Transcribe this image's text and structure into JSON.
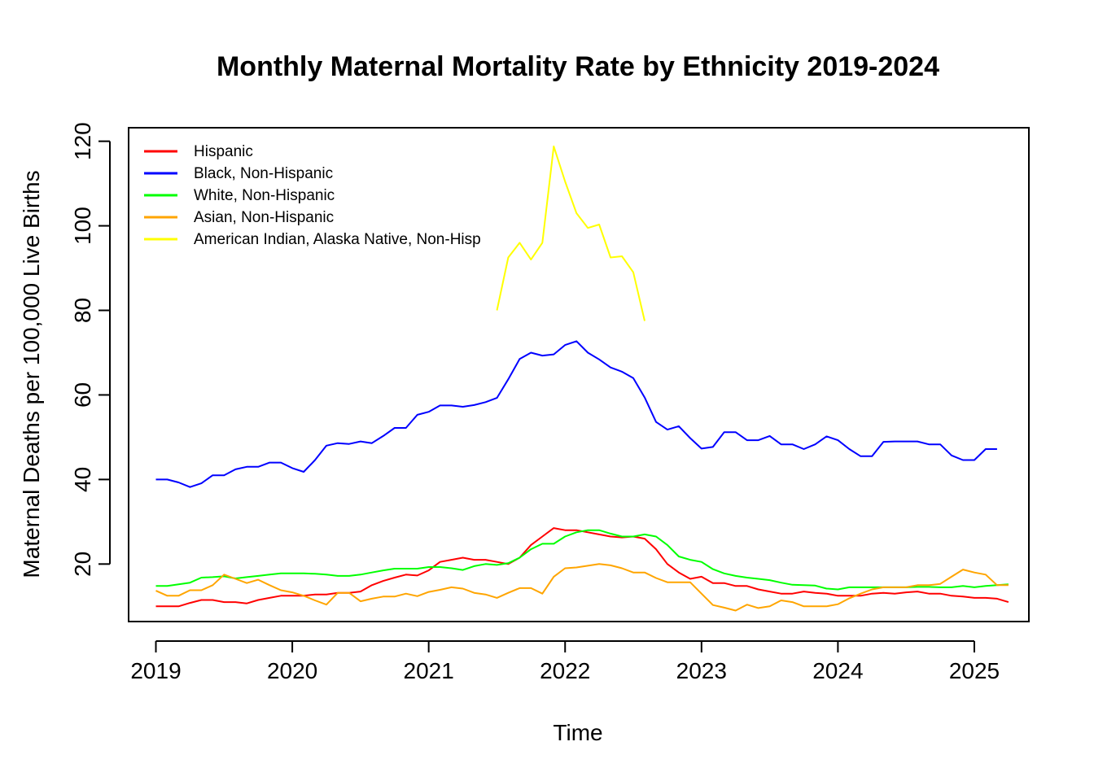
{
  "chart_data": {
    "type": "line",
    "title": "Monthly Maternal Mortality Rate by Ethnicity 2019-2024",
    "xlabel": "Time",
    "ylabel": "Maternal Deaths per 100,000 Live Births",
    "xlim": [
      2018.8,
      2025.4
    ],
    "ylim": [
      6.4,
      123.2
    ],
    "x_ticks": [
      2019,
      2020,
      2021,
      2022,
      2023,
      2024,
      2025
    ],
    "y_ticks": [
      20,
      40,
      60,
      80,
      100,
      120
    ],
    "grid": false,
    "legend_position": "top-left",
    "series": [
      {
        "name": "Hispanic",
        "color": "#ff0000",
        "start": 2019.0,
        "step": 0.0833333,
        "values": [
          10.0,
          10.0,
          10.0,
          10.8,
          11.5,
          11.5,
          11.0,
          11.0,
          10.7,
          11.5,
          12.0,
          12.5,
          12.5,
          12.5,
          12.8,
          12.8,
          13.2,
          13.2,
          13.5,
          15.0,
          16.0,
          16.8,
          17.5,
          17.3,
          18.5,
          20.5,
          21.0,
          21.5,
          21.0,
          21.0,
          20.5,
          20.0,
          21.5,
          24.5,
          26.5,
          28.5,
          28.0,
          28.0,
          27.5,
          27.0,
          26.5,
          26.3,
          26.5,
          26.0,
          23.5,
          20.0,
          18.0,
          16.5,
          17.0,
          15.5,
          15.5,
          14.8,
          14.8,
          14.0,
          13.5,
          13.0,
          13.0,
          13.5,
          13.2,
          13.0,
          12.5,
          12.5,
          12.5,
          13.0,
          13.2,
          13.0,
          13.3,
          13.5,
          13.0,
          13.0,
          12.5,
          12.3,
          12.0,
          12.0,
          11.8,
          11.0
        ]
      },
      {
        "name": "Black, Non-Hispanic",
        "color": "#0000ff",
        "start": 2019.0,
        "step": 0.0833333,
        "values": [
          40.0,
          40.0,
          39.3,
          38.2,
          39.1,
          41.0,
          41.0,
          42.4,
          43.0,
          43.0,
          44.0,
          44.0,
          42.7,
          41.8,
          44.6,
          48.0,
          48.6,
          48.4,
          49.0,
          48.6,
          50.3,
          52.2,
          52.2,
          55.3,
          56.0,
          57.5,
          57.5,
          57.2,
          57.6,
          58.3,
          59.3,
          63.7,
          68.5,
          70.0,
          69.3,
          69.6,
          71.8,
          72.7,
          70.0,
          68.4,
          66.5,
          65.5,
          64.0,
          59.4,
          53.6,
          51.8,
          52.6,
          49.8,
          47.3,
          47.7,
          51.2,
          51.2,
          49.3,
          49.3,
          50.3,
          48.3,
          48.3,
          47.2,
          48.3,
          50.2,
          49.3,
          47.2,
          45.5,
          45.5,
          48.9,
          49.0,
          49.0,
          49.0,
          48.3,
          48.3,
          45.7,
          44.6,
          44.6,
          47.2,
          47.2
        ]
      },
      {
        "name": "White, Non-Hispanic",
        "color": "#00ff00",
        "start": 2019.0,
        "step": 0.0833333,
        "values": [
          14.8,
          14.8,
          15.2,
          15.6,
          16.8,
          16.9,
          17.1,
          16.6,
          16.9,
          17.2,
          17.5,
          17.8,
          17.8,
          17.8,
          17.7,
          17.5,
          17.2,
          17.2,
          17.5,
          18.0,
          18.5,
          18.9,
          18.9,
          18.9,
          19.3,
          19.3,
          19.0,
          18.6,
          19.5,
          20.0,
          19.8,
          20.2,
          21.5,
          23.5,
          24.8,
          24.8,
          26.5,
          27.5,
          28.0,
          28.0,
          27.2,
          26.5,
          26.5,
          27.0,
          26.5,
          24.5,
          21.8,
          21.0,
          20.5,
          18.8,
          17.8,
          17.2,
          16.8,
          16.5,
          16.2,
          15.6,
          15.1,
          15.0,
          14.9,
          14.2,
          14.0,
          14.5,
          14.5,
          14.5,
          14.5,
          14.5,
          14.5,
          14.6,
          14.6,
          14.5,
          14.5,
          14.8,
          14.5,
          14.8,
          15.0,
          15.2
        ]
      },
      {
        "name": "Asian, Non-Hispanic",
        "color": "#ffa500",
        "start": 2019.0,
        "step": 0.0833333,
        "values": [
          13.7,
          12.5,
          12.5,
          13.8,
          13.8,
          15.0,
          17.5,
          16.5,
          15.5,
          16.3,
          15.0,
          13.8,
          13.3,
          12.5,
          11.4,
          10.4,
          13.2,
          13.2,
          11.2,
          11.8,
          12.3,
          12.3,
          13.0,
          12.4,
          13.4,
          13.9,
          14.5,
          14.2,
          13.2,
          12.8,
          12.0,
          13.2,
          14.3,
          14.3,
          13.0,
          17.0,
          19.0,
          19.2,
          19.6,
          20.0,
          19.7,
          19.0,
          18.0,
          18.0,
          16.7,
          15.7,
          15.7,
          15.7,
          13.0,
          10.3,
          9.7,
          9.0,
          10.4,
          9.6,
          10.0,
          11.4,
          11.0,
          10.0,
          10.0,
          10.0,
          10.5,
          11.9,
          13.0,
          14.0,
          14.5,
          14.5,
          14.5,
          15.0,
          15.0,
          15.3,
          17.0,
          18.7,
          18.0,
          17.5,
          15.0,
          15.0
        ]
      },
      {
        "name": "American Indian, Alaska Native, Non-Hisp",
        "color": "#ffff00",
        "start": 2021.5,
        "step": 0.0833333,
        "values": [
          80.0,
          92.5,
          96.0,
          92.0,
          96.0,
          118.8,
          110.5,
          103.0,
          99.5,
          100.3,
          92.5,
          92.8,
          89.0,
          77.5
        ]
      }
    ]
  }
}
